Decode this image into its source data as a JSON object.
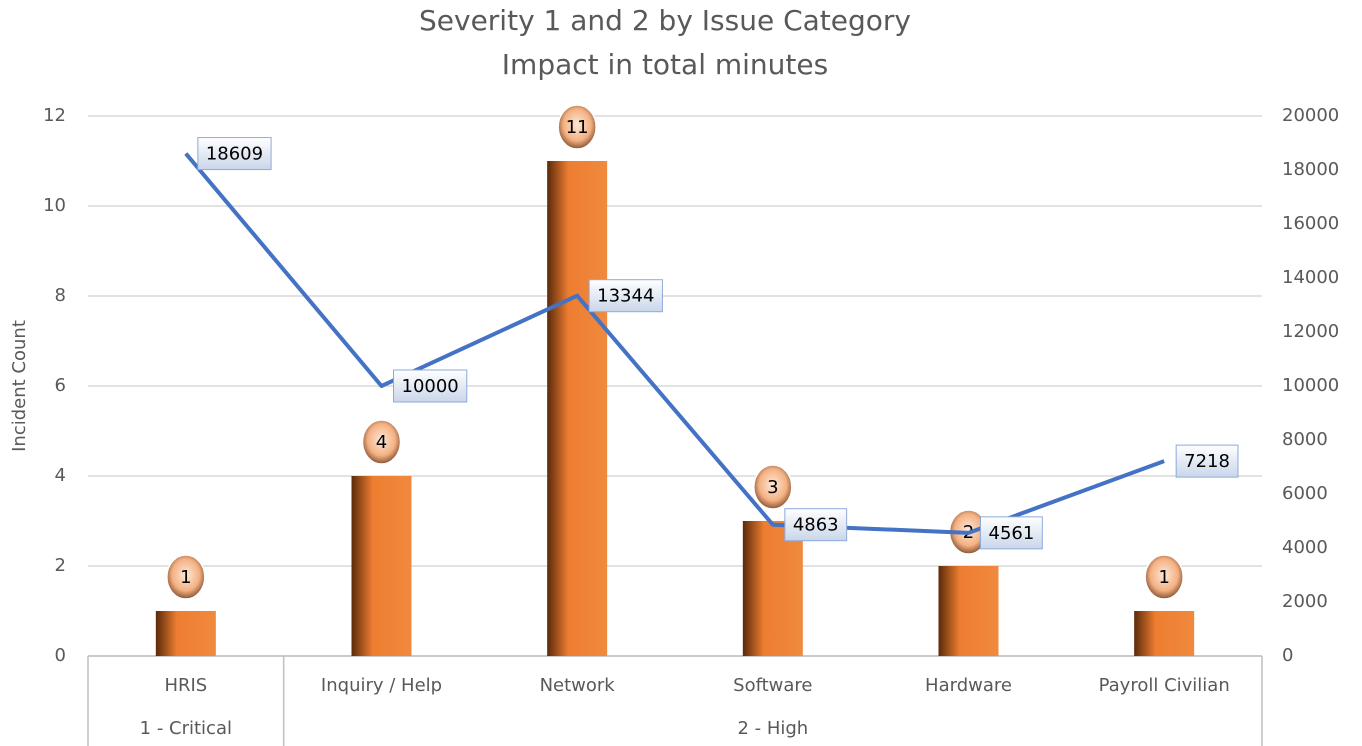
{
  "chart_data": {
    "type": "bar_line",
    "title": "Severity 1 and 2 by Issue Category",
    "subtitle": "Impact in total minutes",
    "y_label": "Incident Count",
    "groups": [
      {
        "label": "1 - Critical",
        "categories": [
          "HRIS"
        ]
      },
      {
        "label": "2 - High",
        "categories": [
          "Inquiry / Help",
          "Network",
          "Software",
          "Hardware",
          "Payroll Civilian"
        ]
      }
    ],
    "series": [
      {
        "type": "bar",
        "color": "#ed7d31",
        "values": [
          1,
          4,
          11,
          3,
          2,
          1
        ]
      },
      {
        "type": "line",
        "color": "#4472c4",
        "axis": "y2",
        "values": [
          18609,
          10000,
          13344,
          4863,
          4561,
          7218
        ]
      }
    ],
    "ylim": [
      0,
      12
    ],
    "yticks": [
      0,
      2,
      4,
      6,
      8,
      10,
      12
    ],
    "y2lim": [
      0,
      20000
    ],
    "y2ticks": [
      0,
      2000,
      4000,
      6000,
      8000,
      10000,
      12000,
      14000,
      16000,
      18000,
      20000
    ],
    "grid": true
  }
}
